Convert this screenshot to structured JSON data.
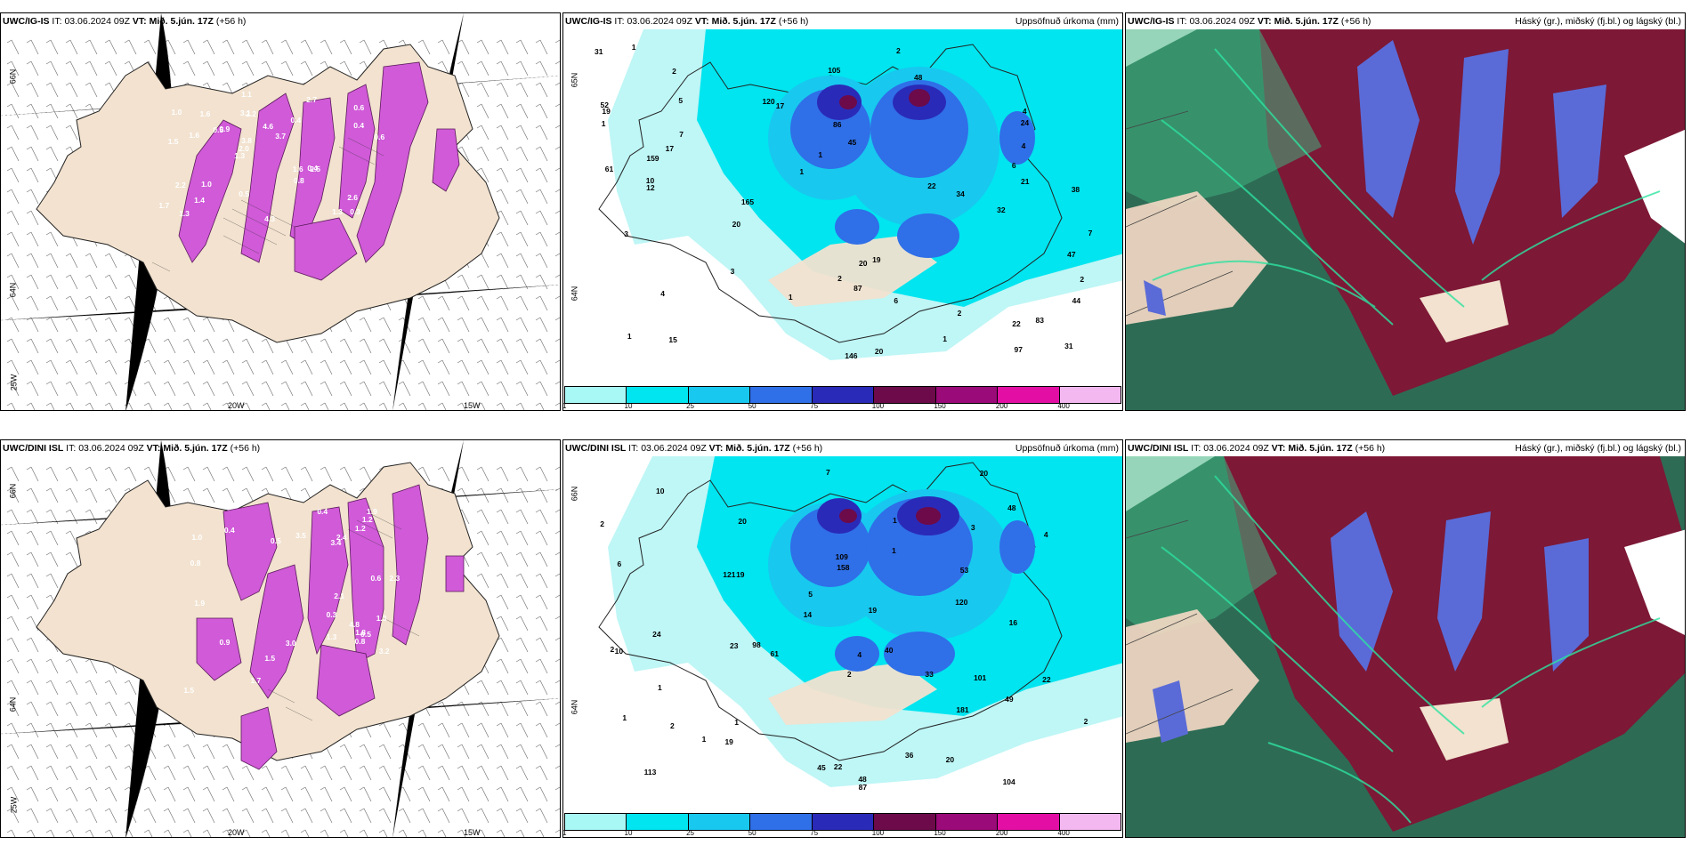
{
  "colors": {
    "land": "#f2e2cf",
    "sea_precip": "#ffffff",
    "precip_bg": "#00e5ef",
    "accent_magenta": "#d45ad8",
    "cloud_high": "#7d1836",
    "cloud_mid": "#5a6bd8",
    "cloud_low": "#2e6b55"
  },
  "rows": [
    {
      "model_label": "UWC/IG-IS",
      "snow_panel": {
        "model": "UWC/IG-IS",
        "it_label": "IT:",
        "it_value": "03.06.2024 09Z",
        "vt_label": "VT:",
        "vt_value": "Mið. 5.jún. 17Z",
        "lead": "(+56 h)",
        "lat_labels": [
          "66N",
          "64N",
          "25W"
        ],
        "lon_labels": [
          "20W",
          "15W"
        ],
        "values": [
          "0.3",
          "1.5",
          "0.6",
          "1.3",
          "0.4",
          "1.3",
          "3.1",
          "4.6",
          "2.2",
          "0.9",
          "1.7",
          "1.4",
          "2.2",
          "3.7",
          "2.5",
          "1.0",
          "1.1",
          "0.6",
          "1.6",
          "0.4",
          "2.0",
          "0.5",
          "3.8",
          "1.6",
          "2.7",
          "1.0",
          "1.3",
          "2.6",
          "0.4",
          "4.3",
          "0.5",
          "1.6",
          "0.8"
        ]
      },
      "precip_panel": {
        "model": "UWC/IG-IS",
        "it_label": "IT:",
        "it_value": "03.06.2024 09Z",
        "vt_label": "VT:",
        "vt_value": "Mið. 5.jún. 17Z",
        "lead": "(+56 h)",
        "right_title": "Uppsöfnuð úrkoma (mm)",
        "lat_labels": [
          "65N",
          "64N"
        ],
        "values": [
          "10",
          "20",
          "21",
          "22",
          "22",
          "20",
          "19",
          "5",
          "15",
          "12",
          "6",
          "47",
          "48",
          "105",
          "165",
          "146",
          "159",
          "87",
          "61",
          "97",
          "44",
          "20",
          "19",
          "31",
          "17",
          "38",
          "32",
          "24",
          "31",
          "83",
          "120",
          "86",
          "45",
          "17",
          "34",
          "52",
          "2",
          "1",
          "2",
          "3",
          "4",
          "7",
          "6",
          "1",
          "4",
          "3",
          "1",
          "2",
          "1",
          "2",
          "1",
          "1",
          "1",
          "7",
          "4",
          "2"
        ],
        "colorbar": [
          "1",
          "10",
          "25",
          "50",
          "75",
          "100",
          "150",
          "200",
          "400"
        ]
      },
      "cloud_panel": {
        "model": "UWC/IG-IS",
        "it_label": "IT:",
        "it_value": "03.06.2024 09Z",
        "vt_label": "VT:",
        "vt_value": "Mið. 5.jún. 17Z",
        "lead": "(+56 h)",
        "right_title": "Háský (gr.), miðský (fj.bl.) og lágský (bl.)"
      }
    },
    {
      "model_label": "UWC/DINI ISL",
      "snow_panel": {
        "model": "UWC/DINI ISL",
        "it_label": "IT:",
        "it_value": "03.06.2024 09Z",
        "vt_label": "VT:",
        "vt_value": "Mið. 5.jún. 17Z",
        "lead": "(+56 h)",
        "lat_labels": [
          "66N",
          "64N",
          "25W"
        ],
        "lon_labels": [
          "20W",
          "15W"
        ],
        "values": [
          "1.7",
          "3.0",
          "0.8",
          "2.3",
          "1.9",
          "1.5",
          "2.4",
          "1.2",
          "0.4",
          "1.3",
          "0.9",
          "2.1",
          "1.9",
          "1.5",
          "0.6",
          "3.2",
          "1.8",
          "1.0",
          "0.5",
          "4.8",
          "3.5",
          "0.3",
          "0.4",
          "1.3",
          "0.8",
          "3.4",
          "1.2",
          "0.5"
        ]
      },
      "precip_panel": {
        "model": "UWC/DINI ISL",
        "it_label": "IT:",
        "it_value": "03.06.2024 09Z",
        "vt_label": "VT:",
        "vt_value": "Mið. 5.jún. 17Z",
        "lead": "(+56 h)",
        "right_title": "Uppsöfnuð úrkoma (mm)",
        "lat_labels": [
          "66N",
          "64N"
        ],
        "values": [
          "19",
          "20",
          "20",
          "19",
          "20",
          "7",
          "22",
          "48",
          "121",
          "181",
          "101",
          "158",
          "113",
          "98",
          "109",
          "61",
          "87",
          "40",
          "104",
          "53",
          "24",
          "16",
          "19",
          "14",
          "120",
          "45",
          "49",
          "48",
          "36",
          "33",
          "22",
          "10",
          "23",
          "2",
          "1",
          "2",
          "3",
          "5",
          "1",
          "6",
          "4",
          "10",
          "1",
          "2",
          "1",
          "1",
          "2",
          "2",
          "4",
          "1"
        ],
        "colorbar": [
          "1",
          "10",
          "25",
          "50",
          "75",
          "100",
          "150",
          "200",
          "400"
        ]
      },
      "cloud_panel": {
        "model": "UWC/DINI ISL",
        "it_label": "IT:",
        "it_value": "03.06.2024 09Z",
        "vt_label": "VT:",
        "vt_value": "Mið. 5.jún. 17Z",
        "lead": "(+56 h)",
        "right_title": "Háský (gr.), miðský (fj.bl.) og lágský (bl.)"
      }
    }
  ],
  "colorbar_colors": [
    "#a8f8f6",
    "#00e5ef",
    "#18c8ef",
    "#2f6fe8",
    "#2a2ab8",
    "#6c0a4a",
    "#9a0a78",
    "#e30fa5",
    "#f4b8f0"
  ]
}
